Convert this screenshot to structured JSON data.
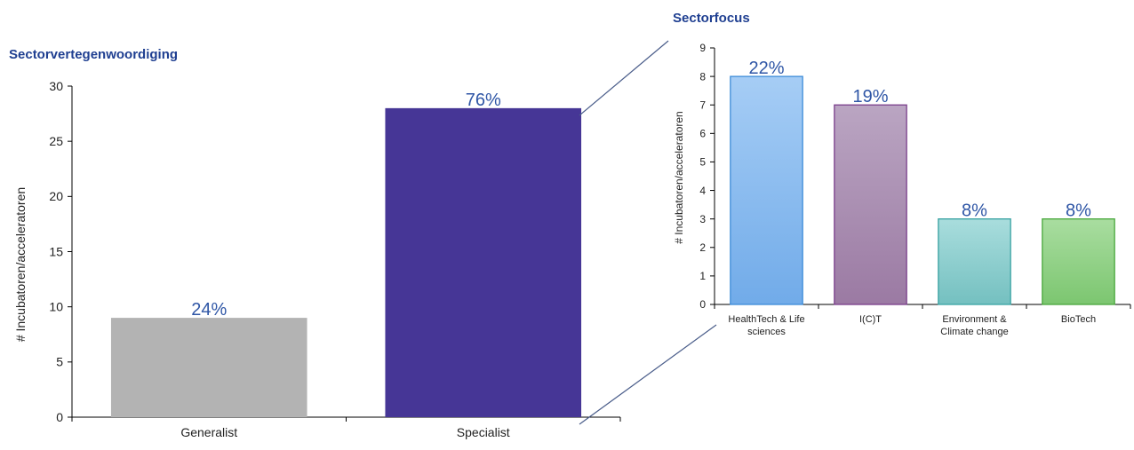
{
  "chart_data": [
    {
      "type": "bar",
      "title": "Sectorvertegenwoordiging",
      "xlabel": "",
      "ylabel": "# Incubatoren/acceleratoren",
      "ylim": [
        0,
        30
      ],
      "yticks": [
        0,
        5,
        10,
        15,
        20,
        25,
        30
      ],
      "categories": [
        "Generalist",
        "Specialist"
      ],
      "values": [
        9,
        28
      ],
      "data_labels": [
        "24%",
        "76%"
      ],
      "colors": [
        "#b3b3b3",
        "#463696"
      ],
      "grid": false,
      "legend": "none"
    },
    {
      "type": "bar",
      "title": "Sectorfocus",
      "xlabel": "",
      "ylabel": "# Incubatoren/acceleratoren",
      "ylim": [
        0,
        9
      ],
      "yticks": [
        0,
        1,
        2,
        3,
        4,
        5,
        6,
        7,
        8,
        9
      ],
      "categories": [
        [
          "HealthTech & Life",
          "sciences"
        ],
        [
          "I(C)T"
        ],
        [
          "Environment &",
          "Climate change"
        ],
        [
          "BioTech"
        ]
      ],
      "values": [
        8,
        7,
        3,
        3
      ],
      "data_labels": [
        "22%",
        "19%",
        "8%",
        "8%"
      ],
      "colors": [
        {
          "top": "#a6cdf5",
          "bottom": "#71abe9",
          "stroke": "#3d8cd9"
        },
        {
          "top": "#baa5c2",
          "bottom": "#9b7aa3",
          "stroke": "#7b3f8c"
        },
        {
          "top": "#a9dddd",
          "bottom": "#74c0c0",
          "stroke": "#3aa3a3"
        },
        {
          "top": "#a9dda0",
          "bottom": "#7cc670",
          "stroke": "#4aa83d"
        }
      ],
      "grid": false,
      "legend": "none"
    }
  ]
}
